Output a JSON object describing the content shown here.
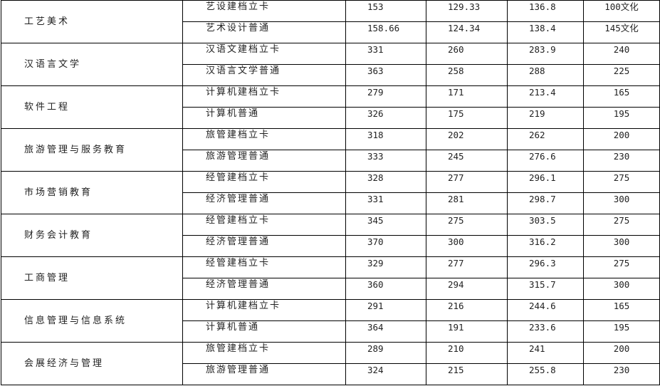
{
  "rows": [
    {
      "major": "工艺美术",
      "tracks": [
        [
          "艺设建档立卡",
          "153",
          "129.33",
          "136.8",
          "100文化"
        ],
        [
          "艺术设计普通",
          "158.66",
          "124.34",
          "138.4",
          "145文化"
        ]
      ]
    },
    {
      "major": "汉语言文学",
      "tracks": [
        [
          "汉语文建档立卡",
          "331",
          "260",
          "283.9",
          "240"
        ],
        [
          "汉语言文学普通",
          "363",
          "258",
          "288",
          "225"
        ]
      ]
    },
    {
      "major": "软件工程",
      "tracks": [
        [
          "计算机建档立卡",
          "279",
          "171",
          "213.4",
          "165"
        ],
        [
          "计算机普通",
          "326",
          "175",
          "219",
          "195"
        ]
      ]
    },
    {
      "major": "旅游管理与服务教育",
      "tracks": [
        [
          "旅管建档立卡",
          "318",
          "202",
          "262",
          "200"
        ],
        [
          "旅游管理普通",
          "333",
          "245",
          "276.6",
          "230"
        ]
      ]
    },
    {
      "major": "市场营销教育",
      "tracks": [
        [
          "经管建档立卡",
          "328",
          "277",
          "296.1",
          "275"
        ],
        [
          "经济管理普通",
          "331",
          "281",
          "298.7",
          "300"
        ]
      ]
    },
    {
      "major": "财务会计教育",
      "tracks": [
        [
          "经管建档立卡",
          "345",
          "275",
          "303.5",
          "275"
        ],
        [
          "经济管理普通",
          "370",
          "300",
          "316.2",
          "300"
        ]
      ]
    },
    {
      "major": "工商管理",
      "tracks": [
        [
          "经管建档立卡",
          "329",
          "277",
          "296.3",
          "275"
        ],
        [
          "经济管理普通",
          "360",
          "294",
          "315.7",
          "300"
        ]
      ]
    },
    {
      "major": "信息管理与信息系统",
      "tracks": [
        [
          "计算机建档立卡",
          "291",
          "216",
          "244.6",
          "165"
        ],
        [
          "计算机普通",
          "364",
          "191",
          "233.6",
          "195"
        ]
      ]
    },
    {
      "major": "会展经济与管理",
      "tracks": [
        [
          "旅管建档立卡",
          "289",
          "210",
          "241",
          "200"
        ],
        [
          "旅游管理普通",
          "324",
          "215",
          "255.8",
          "230"
        ]
      ]
    }
  ]
}
